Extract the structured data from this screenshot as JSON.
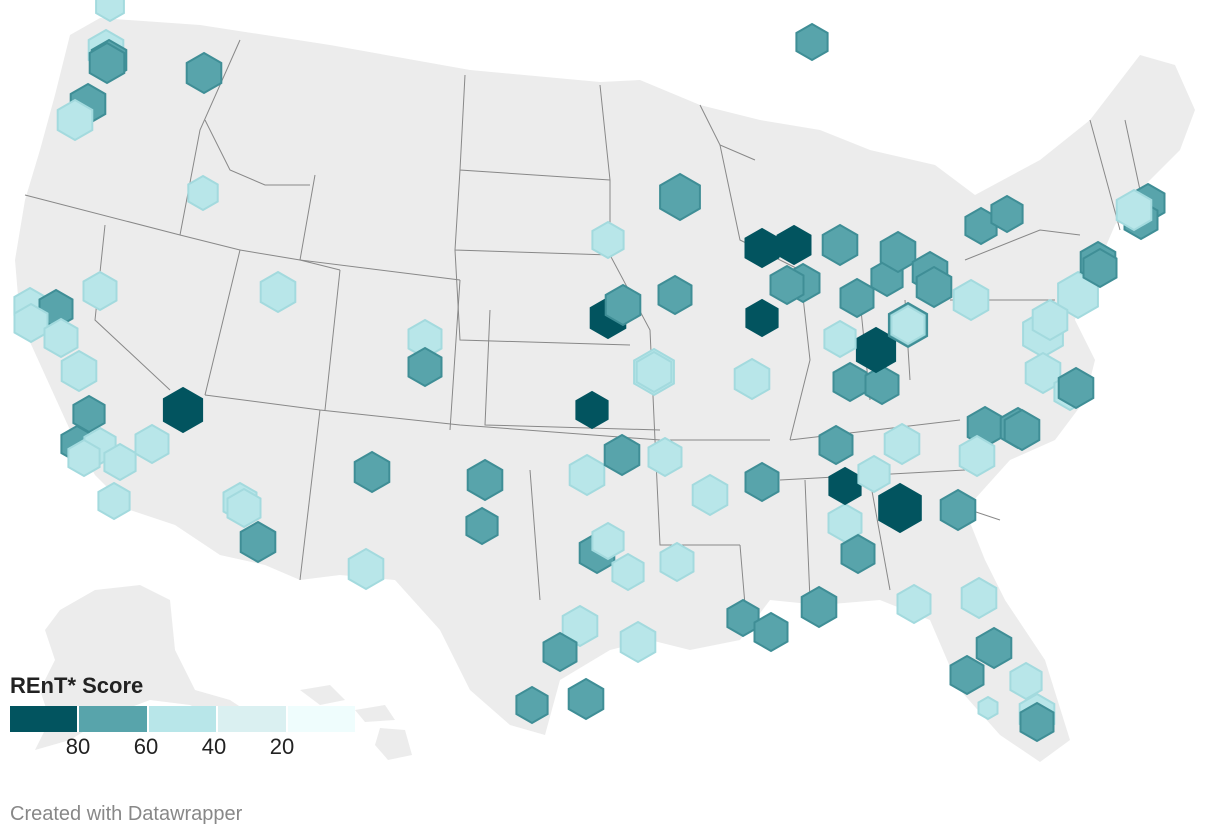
{
  "legend": {
    "title": "REnT* Score",
    "colors": [
      "#02545f",
      "#58a4ab",
      "#b8e6e9",
      "#daf0f1",
      "#effdfd"
    ],
    "ticks": [
      "80",
      "60",
      "40",
      "20"
    ]
  },
  "credit": "Created with Datawrapper",
  "colors": {
    "land": "#ececec",
    "border": "#888888",
    "background": "#ffffff"
  },
  "tiers": {
    "dark": {
      "fill": "#02545f",
      "stroke": "#02545f"
    },
    "mid": {
      "fill": "#58a4ab",
      "stroke": "#3f8e96"
    },
    "light": {
      "fill": "#b8e6e9",
      "stroke": "#a3dade"
    },
    "lighter": {
      "fill": "#daf0f1",
      "stroke": "#c3e4e6"
    },
    "lightest": {
      "fill": "#effdfd",
      "stroke": "#d7eef0"
    }
  },
  "hex_markers": [
    {
      "tier": "light"
    },
    {
      "tier": "light"
    },
    {
      "tier": "mid"
    },
    {
      "tier": "mid"
    },
    {
      "tier": "mid"
    },
    {
      "tier": "mid"
    },
    {
      "tier": "light"
    },
    {
      "tier": "light"
    },
    {
      "tier": "light"
    },
    {
      "tier": "light"
    },
    {
      "tier": "mid"
    },
    {
      "tier": "light"
    },
    {
      "tier": "light"
    },
    {
      "tier": "light"
    },
    {
      "tier": "mid"
    },
    {
      "tier": "mid"
    },
    {
      "tier": "light"
    },
    {
      "tier": "light"
    },
    {
      "tier": "light"
    },
    {
      "tier": "light"
    },
    {
      "tier": "light"
    },
    {
      "tier": "light"
    },
    {
      "tier": "dark"
    },
    {
      "tier": "light"
    },
    {
      "tier": "light"
    },
    {
      "tier": "mid"
    },
    {
      "tier": "light"
    },
    {
      "tier": "mid"
    },
    {
      "tier": "light"
    },
    {
      "tier": "light"
    },
    {
      "tier": "mid"
    },
    {
      "tier": "mid"
    },
    {
      "tier": "mid"
    },
    {
      "tier": "light"
    },
    {
      "tier": "dark"
    },
    {
      "tier": "light"
    },
    {
      "tier": "mid"
    },
    {
      "tier": "mid"
    },
    {
      "tier": "dark"
    },
    {
      "tier": "mid"
    },
    {
      "tier": "light"
    },
    {
      "tier": "light"
    },
    {
      "tier": "mid"
    },
    {
      "tier": "light"
    },
    {
      "tier": "mid"
    },
    {
      "tier": "light"
    },
    {
      "tier": "light"
    },
    {
      "tier": "light"
    },
    {
      "tier": "light"
    },
    {
      "tier": "mid"
    },
    {
      "tier": "light"
    },
    {
      "tier": "mid"
    },
    {
      "tier": "mid"
    },
    {
      "tier": "light"
    },
    {
      "tier": "light"
    },
    {
      "tier": "mid"
    },
    {
      "tier": "mid"
    },
    {
      "tier": "mid"
    },
    {
      "tier": "mid"
    },
    {
      "tier": "light"
    },
    {
      "tier": "light"
    },
    {
      "tier": "mid"
    },
    {
      "tier": "mid"
    },
    {
      "tier": "light"
    },
    {
      "tier": "light"
    },
    {
      "tier": "light"
    },
    {
      "tier": "mid"
    },
    {
      "tier": "light"
    },
    {
      "tier": "mid"
    },
    {
      "tier": "dark"
    },
    {
      "tier": "mid"
    },
    {
      "tier": "light"
    },
    {
      "tier": "dark"
    },
    {
      "tier": "mid"
    },
    {
      "tier": "light"
    },
    {
      "tier": "mid"
    },
    {
      "tier": "light"
    },
    {
      "tier": "mid"
    },
    {
      "tier": "mid"
    },
    {
      "tier": "mid"
    },
    {
      "tier": "mid"
    },
    {
      "tier": "dark"
    },
    {
      "tier": "light"
    },
    {
      "tier": "mid"
    },
    {
      "tier": "light"
    },
    {
      "tier": "mid"
    },
    {
      "tier": "mid"
    },
    {
      "tier": "mid"
    },
    {
      "tier": "mid"
    },
    {
      "tier": "mid"
    },
    {
      "tier": "light"
    },
    {
      "tier": "mid"
    },
    {
      "tier": "dark"
    },
    {
      "tier": "dark"
    },
    {
      "tier": "mid"
    },
    {
      "tier": "mid"
    },
    {
      "tier": "dark"
    },
    {
      "tier": "light"
    },
    {
      "tier": "light"
    },
    {
      "tier": "light"
    },
    {
      "tier": "light"
    },
    {
      "tier": "light"
    },
    {
      "tier": "mid"
    },
    {
      "tier": "mid"
    },
    {
      "tier": "mid"
    },
    {
      "tier": "mid"
    },
    {
      "tier": "mid"
    },
    {
      "tier": "mid"
    },
    {
      "tier": "mid"
    },
    {
      "tier": "light"
    },
    {
      "tier": "mid"
    },
    {
      "tier": "mid"
    },
    {
      "tier": "light"
    },
    {
      "tier": "light"
    },
    {
      "tier": "lightest"
    },
    {
      "tier": "mid"
    },
    {
      "tier": "lighter"
    },
    {
      "tier": "light"
    }
  ]
}
